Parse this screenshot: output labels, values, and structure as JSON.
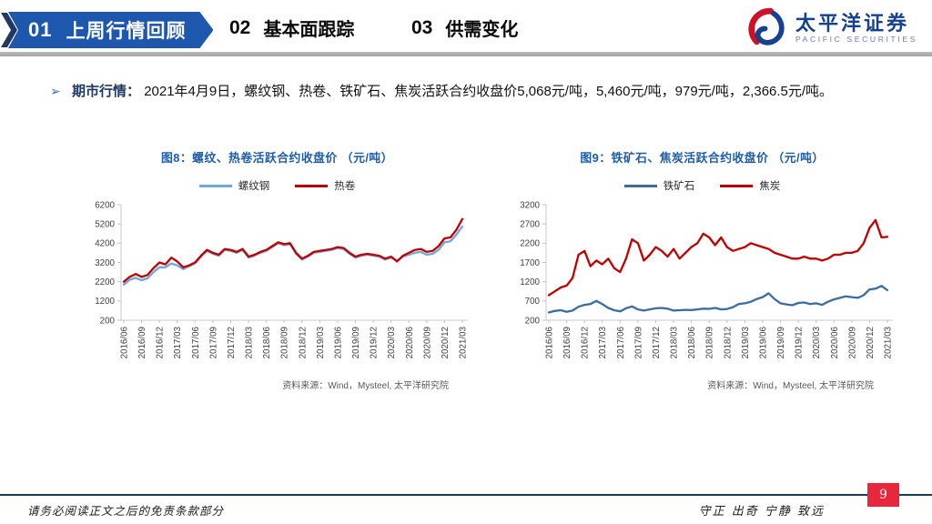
{
  "header": {
    "tabs": [
      {
        "number": "01",
        "label": "上周行情回顾",
        "active": true
      },
      {
        "number": "02",
        "label": "基本面跟踪",
        "active": false
      },
      {
        "number": "03",
        "label": "供需变化",
        "active": false
      }
    ],
    "logo": {
      "name_cn": "太平洋证券",
      "name_en": "PACIFIC SECURITIES"
    }
  },
  "intro": {
    "bullet": "➢",
    "label": "期市行情：",
    "text": "2021年4月9日，螺纹钢、热卷、铁矿石、焦炭活跃合约收盘价5,068元/吨，5,460元/吨，979元/吨，2,366.5元/吨。"
  },
  "colors": {
    "banner_blue": "#1E57AE",
    "navy": "#1F3864",
    "chart_title_blue": "#1E5CA8",
    "series_red": "#C00000",
    "rebar_blue": "#6FA8DC",
    "iron_ore_blue": "#3D6D9E",
    "page_badge_red": "#E8273C",
    "axis_text": "#3f3f3f"
  },
  "chart_data": [
    {
      "type": "line",
      "title": "图8：螺纹、热卷活跃合约收盘价 （元/吨）",
      "source": "资料来源：Wind，Mysteel, 太平洋研究院",
      "ylim": [
        200,
        6200
      ],
      "ystep": 1000,
      "yticks": [
        6200,
        5200,
        4200,
        3200,
        2200,
        1200,
        200
      ],
      "x_tick_step": 3,
      "x_ticks": [
        "2016/06",
        "2016/09",
        "2016/12",
        "2017/03",
        "2017/06",
        "2017/09",
        "2017/12",
        "2018/03",
        "2018/06",
        "2018/09",
        "2018/12",
        "2019/03",
        "2019/06",
        "2019/09",
        "2019/12",
        "2020/03",
        "2020/06",
        "2020/09",
        "2020/12",
        "2021/03"
      ],
      "categories": [
        "2016/06",
        "2016/07",
        "2016/08",
        "2016/09",
        "2016/10",
        "2016/11",
        "2016/12",
        "2017/01",
        "2017/02",
        "2017/03",
        "2017/04",
        "2017/05",
        "2017/06",
        "2017/07",
        "2017/08",
        "2017/09",
        "2017/10",
        "2017/11",
        "2017/12",
        "2018/01",
        "2018/02",
        "2018/03",
        "2018/04",
        "2018/05",
        "2018/06",
        "2018/07",
        "2018/08",
        "2018/09",
        "2018/10",
        "2018/11",
        "2018/12",
        "2019/01",
        "2019/02",
        "2019/03",
        "2019/04",
        "2019/05",
        "2019/06",
        "2019/07",
        "2019/08",
        "2019/09",
        "2019/10",
        "2019/11",
        "2019/12",
        "2020/01",
        "2020/02",
        "2020/03",
        "2020/04",
        "2020/05",
        "2020/06",
        "2020/07",
        "2020/08",
        "2020/09",
        "2020/10",
        "2020/11",
        "2020/12",
        "2021/01",
        "2021/02",
        "2021/03"
      ],
      "series": [
        {
          "name": "螺纹钢",
          "color": "#6FA8DC",
          "values": [
            2050,
            2300,
            2400,
            2280,
            2380,
            2700,
            2950,
            2950,
            3150,
            3050,
            2850,
            3000,
            3150,
            3500,
            3800,
            3650,
            3550,
            3850,
            3800,
            3700,
            3850,
            3450,
            3550,
            3700,
            3800,
            4000,
            4200,
            4100,
            4150,
            3650,
            3350,
            3500,
            3700,
            3750,
            3800,
            3850,
            3950,
            3900,
            3650,
            3450,
            3550,
            3600,
            3550,
            3500,
            3350,
            3450,
            3300,
            3500,
            3600,
            3700,
            3750,
            3600,
            3650,
            3850,
            4250,
            4300,
            4650,
            5068
          ]
        },
        {
          "name": "热卷",
          "color": "#C00000",
          "values": [
            2200,
            2450,
            2600,
            2450,
            2550,
            2900,
            3200,
            3100,
            3450,
            3250,
            2950,
            3050,
            3200,
            3550,
            3850,
            3700,
            3600,
            3900,
            3850,
            3750,
            3900,
            3500,
            3600,
            3750,
            3850,
            4050,
            4250,
            4150,
            4200,
            3700,
            3400,
            3550,
            3750,
            3800,
            3850,
            3900,
            4000,
            3950,
            3700,
            3500,
            3600,
            3650,
            3600,
            3550,
            3400,
            3500,
            3250,
            3550,
            3700,
            3850,
            3900,
            3750,
            3800,
            4050,
            4450,
            4500,
            4900,
            5460
          ]
        }
      ]
    },
    {
      "type": "line",
      "title": "图9：铁矿石、焦炭活跃合约收盘价 （元/吨）",
      "source": "资料来源：Wind，Mysteel, 太平洋研究院",
      "ylim": [
        200,
        3200
      ],
      "ystep": 500,
      "yticks": [
        3200,
        2700,
        2200,
        1700,
        1200,
        700,
        200
      ],
      "x_tick_step": 3,
      "x_ticks": [
        "2016/06",
        "2016/09",
        "2016/12",
        "2017/03",
        "2017/06",
        "2017/09",
        "2017/12",
        "2018/03",
        "2018/06",
        "2018/09",
        "2018/12",
        "2019/03",
        "2019/06",
        "2019/09",
        "2019/12",
        "2020/03",
        "2020/06",
        "2020/09",
        "2020/12",
        "2021/03"
      ],
      "categories": [
        "2016/06",
        "2016/07",
        "2016/08",
        "2016/09",
        "2016/10",
        "2016/11",
        "2016/12",
        "2017/01",
        "2017/02",
        "2017/03",
        "2017/04",
        "2017/05",
        "2017/06",
        "2017/07",
        "2017/08",
        "2017/09",
        "2017/10",
        "2017/11",
        "2017/12",
        "2018/01",
        "2018/02",
        "2018/03",
        "2018/04",
        "2018/05",
        "2018/06",
        "2018/07",
        "2018/08",
        "2018/09",
        "2018/10",
        "2018/11",
        "2018/12",
        "2019/01",
        "2019/02",
        "2019/03",
        "2019/04",
        "2019/05",
        "2019/06",
        "2019/07",
        "2019/08",
        "2019/09",
        "2019/10",
        "2019/11",
        "2019/12",
        "2020/01",
        "2020/02",
        "2020/03",
        "2020/04",
        "2020/05",
        "2020/06",
        "2020/07",
        "2020/08",
        "2020/09",
        "2020/10",
        "2020/11",
        "2020/12",
        "2021/01",
        "2021/02",
        "2021/03"
      ],
      "series": [
        {
          "name": "铁矿石",
          "color": "#3D6D9E",
          "values": [
            400,
            440,
            460,
            420,
            450,
            550,
            600,
            620,
            700,
            620,
            520,
            460,
            430,
            510,
            560,
            480,
            450,
            480,
            510,
            520,
            500,
            450,
            460,
            470,
            465,
            480,
            500,
            495,
            520,
            480,
            490,
            540,
            620,
            640,
            680,
            750,
            800,
            900,
            750,
            640,
            610,
            590,
            650,
            660,
            620,
            640,
            600,
            680,
            740,
            780,
            820,
            800,
            780,
            850,
            1000,
            1020,
            1090,
            979
          ]
        },
        {
          "name": "焦炭",
          "color": "#C00000",
          "values": [
            850,
            950,
            1050,
            1100,
            1300,
            1900,
            2000,
            1600,
            1750,
            1650,
            1800,
            1550,
            1450,
            1800,
            2300,
            2200,
            1750,
            1900,
            2100,
            2000,
            1850,
            2050,
            1800,
            1950,
            2100,
            2200,
            2450,
            2350,
            2150,
            2350,
            2100,
            2000,
            2050,
            2100,
            2200,
            2150,
            2100,
            2050,
            1950,
            1900,
            1850,
            1800,
            1800,
            1850,
            1800,
            1800,
            1750,
            1800,
            1900,
            1900,
            1950,
            1950,
            2000,
            2200,
            2600,
            2800,
            2350,
            2366.5
          ]
        }
      ]
    }
  ],
  "footer": {
    "disclaimer": "请务必阅读正文之后的免责条款部分",
    "motto": "守正  出奇  宁静  致远",
    "page": "9"
  }
}
